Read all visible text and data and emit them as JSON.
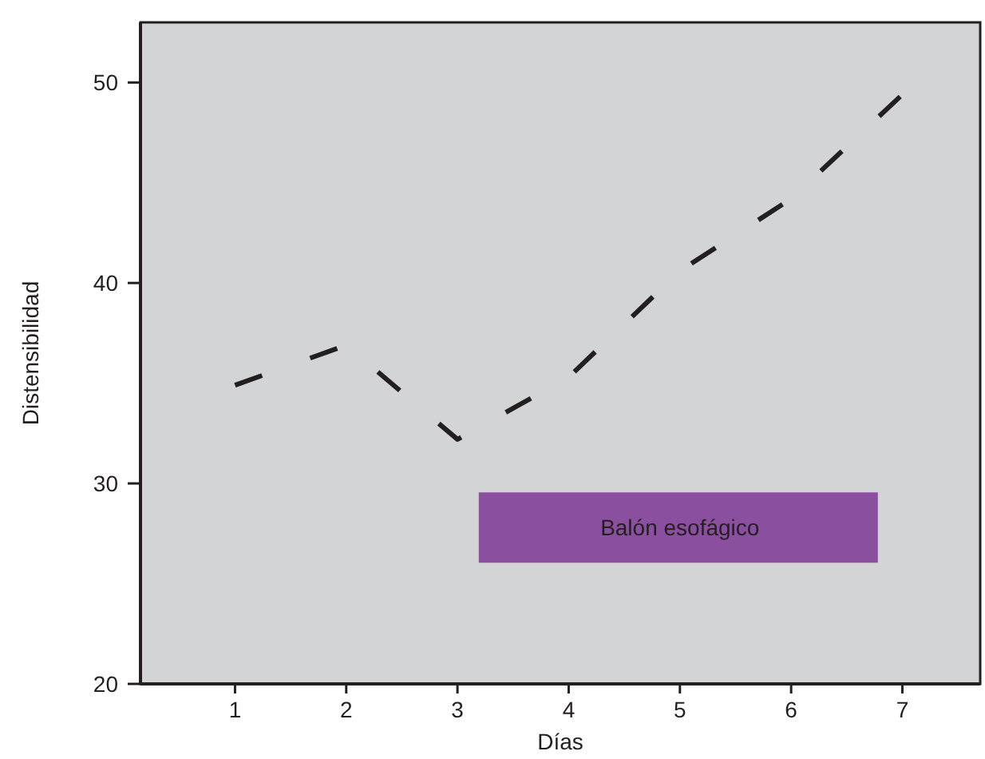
{
  "chart_data": {
    "type": "line",
    "xlabel": "Días",
    "ylabel": "Distensibilidad",
    "x": [
      1,
      2,
      3,
      4,
      5,
      6,
      7
    ],
    "series": [
      {
        "color": "#231f20",
        "values": [
          34.9,
          36.9,
          32.2,
          35.3,
          40.6,
          44.2,
          49.4
        ]
      }
    ],
    "xlim": [
      0.15,
      7.7
    ],
    "xticks": [
      1,
      2,
      3,
      4,
      5,
      6,
      7
    ],
    "ylim": [
      20,
      53
    ],
    "yticks": [
      20,
      30,
      40,
      50
    ],
    "line_style": "dashed",
    "marker": "none",
    "grid": false,
    "annotations": [
      "Balón esofágico"
    ]
  }
}
